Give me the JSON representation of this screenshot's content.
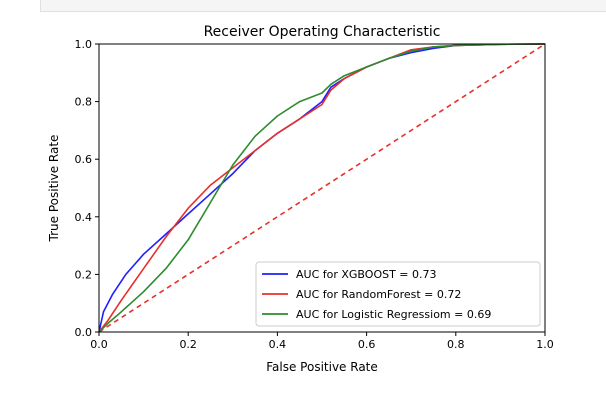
{
  "chart_data": {
    "type": "line",
    "title": "Receiver Operating Characteristic",
    "xlabel": "False Positive Rate",
    "ylabel": "True Positive Rate",
    "xlim": [
      0,
      1
    ],
    "ylim": [
      0,
      1
    ],
    "xticks": [
      "0.0",
      "0.2",
      "0.4",
      "0.6",
      "0.8",
      "1.0"
    ],
    "yticks": [
      "0.0",
      "0.2",
      "0.4",
      "0.6",
      "0.8",
      "1.0"
    ],
    "grid": false,
    "legend_position": "lower-right",
    "series": [
      {
        "name": "AUC for XGBOOST = 0.73",
        "color": "#1f1fff",
        "x": [
          0,
          0.01,
          0.03,
          0.06,
          0.1,
          0.15,
          0.2,
          0.25,
          0.3,
          0.35,
          0.4,
          0.45,
          0.5,
          0.52,
          0.55,
          0.6,
          0.65,
          0.7,
          0.75,
          0.8,
          0.9,
          1.0
        ],
        "y": [
          0,
          0.07,
          0.13,
          0.2,
          0.27,
          0.34,
          0.41,
          0.48,
          0.55,
          0.63,
          0.69,
          0.74,
          0.8,
          0.85,
          0.88,
          0.92,
          0.95,
          0.97,
          0.985,
          0.995,
          0.999,
          1.0
        ]
      },
      {
        "name": "AUC for RandomForest = 0.72",
        "color": "#e8302a",
        "x": [
          0,
          0.02,
          0.05,
          0.1,
          0.15,
          0.2,
          0.25,
          0.3,
          0.35,
          0.4,
          0.45,
          0.5,
          0.52,
          0.55,
          0.6,
          0.65,
          0.7,
          0.75,
          0.8,
          0.9,
          1.0
        ],
        "y": [
          0,
          0.04,
          0.11,
          0.22,
          0.33,
          0.43,
          0.51,
          0.57,
          0.63,
          0.69,
          0.74,
          0.79,
          0.84,
          0.88,
          0.92,
          0.95,
          0.98,
          0.99,
          0.995,
          0.999,
          1.0
        ]
      },
      {
        "name": "AUC for Logistic Regressiom = 0.69",
        "color": "#2e8b2e",
        "x": [
          0,
          0.02,
          0.05,
          0.1,
          0.15,
          0.2,
          0.25,
          0.3,
          0.35,
          0.4,
          0.45,
          0.5,
          0.52,
          0.55,
          0.6,
          0.65,
          0.7,
          0.75,
          0.8,
          0.9,
          1.0
        ],
        "y": [
          0,
          0.03,
          0.07,
          0.14,
          0.22,
          0.32,
          0.45,
          0.58,
          0.68,
          0.75,
          0.8,
          0.83,
          0.86,
          0.89,
          0.92,
          0.95,
          0.975,
          0.99,
          0.995,
          0.999,
          1.0
        ]
      }
    ],
    "reference_line": {
      "color": "#e8302a",
      "style": "dashed",
      "x": [
        0,
        1
      ],
      "y": [
        0,
        1
      ]
    }
  }
}
